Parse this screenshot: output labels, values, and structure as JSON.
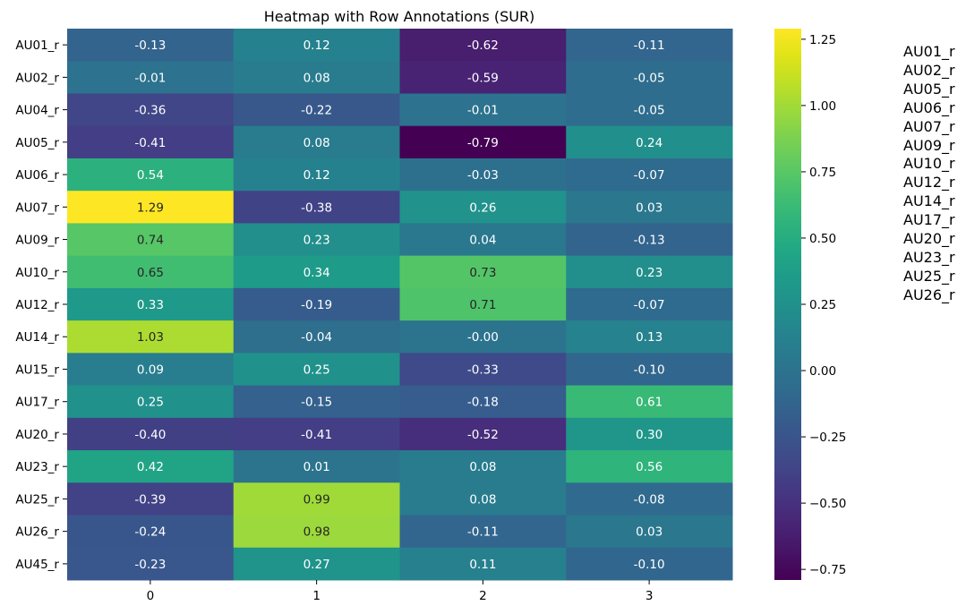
{
  "chart_data": {
    "type": "heatmap",
    "title": "Heatmap with Row Annotations (SUR)",
    "xlabel": "",
    "ylabel": "",
    "columns": [
      "0",
      "1",
      "2",
      "3"
    ],
    "rows": [
      "AU01_r",
      "AU02_r",
      "AU04_r",
      "AU05_r",
      "AU06_r",
      "AU07_r",
      "AU09_r",
      "AU10_r",
      "AU12_r",
      "AU14_r",
      "AU15_r",
      "AU17_r",
      "AU20_r",
      "AU23_r",
      "AU25_r",
      "AU26_r",
      "AU45_r"
    ],
    "values": [
      [
        -0.13,
        0.12,
        -0.62,
        -0.11
      ],
      [
        -0.01,
        0.08,
        -0.59,
        -0.05
      ],
      [
        -0.36,
        -0.22,
        -0.01,
        -0.05
      ],
      [
        -0.41,
        0.08,
        -0.79,
        0.24
      ],
      [
        0.54,
        0.12,
        -0.03,
        -0.07
      ],
      [
        1.29,
        -0.38,
        0.26,
        0.03
      ],
      [
        0.74,
        0.23,
        0.04,
        -0.13
      ],
      [
        0.65,
        0.34,
        0.73,
        0.23
      ],
      [
        0.33,
        -0.19,
        0.71,
        -0.07
      ],
      [
        1.03,
        -0.04,
        -0.0,
        0.13
      ],
      [
        0.09,
        0.25,
        -0.33,
        -0.1
      ],
      [
        0.25,
        -0.15,
        -0.18,
        0.61
      ],
      [
        -0.4,
        -0.41,
        -0.52,
        0.3
      ],
      [
        0.42,
        0.01,
        0.08,
        0.56
      ],
      [
        -0.39,
        0.99,
        0.08,
        -0.08
      ],
      [
        -0.24,
        0.98,
        -0.11,
        0.03
      ],
      [
        -0.23,
        0.27,
        0.11,
        -0.1
      ]
    ],
    "labels": [
      [
        "-0.13",
        "0.12",
        "-0.62",
        "-0.11"
      ],
      [
        "-0.01",
        "0.08",
        "-0.59",
        "-0.05"
      ],
      [
        "-0.36",
        "-0.22",
        "-0.01",
        "-0.05"
      ],
      [
        "-0.41",
        "0.08",
        "-0.79",
        "0.24"
      ],
      [
        "0.54",
        "0.12",
        "-0.03",
        "-0.07"
      ],
      [
        "1.29",
        "-0.38",
        "0.26",
        "0.03"
      ],
      [
        "0.74",
        "0.23",
        "0.04",
        "-0.13"
      ],
      [
        "0.65",
        "0.34",
        "0.73",
        "0.23"
      ],
      [
        "0.33",
        "-0.19",
        "0.71",
        "-0.07"
      ],
      [
        "1.03",
        "-0.04",
        "-0.00",
        "0.13"
      ],
      [
        "0.09",
        "0.25",
        "-0.33",
        "-0.10"
      ],
      [
        "0.25",
        "-0.15",
        "-0.18",
        "0.61"
      ],
      [
        "-0.40",
        "-0.41",
        "-0.52",
        "0.30"
      ],
      [
        "0.42",
        "0.01",
        "0.08",
        "0.56"
      ],
      [
        "-0.39",
        "0.99",
        "0.08",
        "-0.08"
      ],
      [
        "-0.24",
        "0.98",
        "-0.11",
        "0.03"
      ],
      [
        "-0.23",
        "0.27",
        "0.11",
        "-0.10"
      ]
    ],
    "colormap": "viridis",
    "vmin": -0.79,
    "vmax": 1.29,
    "colorbar_ticks": [
      1.25,
      1.0,
      0.75,
      0.5,
      0.25,
      0.0,
      -0.25,
      -0.5,
      -0.75
    ],
    "colorbar_tick_labels": [
      "1.25",
      "1.00",
      "0.75",
      "0.50",
      "0.25",
      "0.00",
      "−0.25",
      "−0.50",
      "−0.75"
    ]
  },
  "row_annotations": [
    "AU01_r",
    "AU02_r",
    "AU05_r",
    "AU06_r",
    "AU07_r",
    "AU09_r",
    "AU10_r",
    "AU12_r",
    "AU14_r",
    "AU17_r",
    "AU20_r",
    "AU23_r",
    "AU25_r",
    "AU26_r"
  ]
}
